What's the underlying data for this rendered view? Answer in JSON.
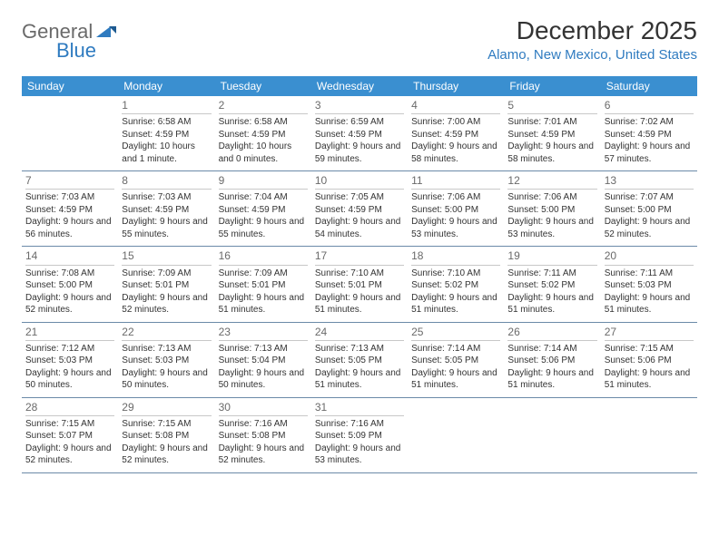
{
  "logo": {
    "general": "General",
    "blue": "Blue"
  },
  "header": {
    "title": "December 2025",
    "location": "Alamo, New Mexico, United States"
  },
  "colors": {
    "header_bg": "#3a8fd0",
    "accent": "#2f7bc0",
    "text": "#333333",
    "muted": "#6a6a6a",
    "divider": "#6b8aa8",
    "cell_divider": "#c8c8c8",
    "bg": "#ffffff"
  },
  "weekdays": [
    "Sunday",
    "Monday",
    "Tuesday",
    "Wednesday",
    "Thursday",
    "Friday",
    "Saturday"
  ],
  "weeks": [
    [
      {
        "n": "",
        "sr": "",
        "ss": "",
        "dl": ""
      },
      {
        "n": "1",
        "sr": "Sunrise: 6:58 AM",
        "ss": "Sunset: 4:59 PM",
        "dl": "Daylight: 10 hours and 1 minute."
      },
      {
        "n": "2",
        "sr": "Sunrise: 6:58 AM",
        "ss": "Sunset: 4:59 PM",
        "dl": "Daylight: 10 hours and 0 minutes."
      },
      {
        "n": "3",
        "sr": "Sunrise: 6:59 AM",
        "ss": "Sunset: 4:59 PM",
        "dl": "Daylight: 9 hours and 59 minutes."
      },
      {
        "n": "4",
        "sr": "Sunrise: 7:00 AM",
        "ss": "Sunset: 4:59 PM",
        "dl": "Daylight: 9 hours and 58 minutes."
      },
      {
        "n": "5",
        "sr": "Sunrise: 7:01 AM",
        "ss": "Sunset: 4:59 PM",
        "dl": "Daylight: 9 hours and 58 minutes."
      },
      {
        "n": "6",
        "sr": "Sunrise: 7:02 AM",
        "ss": "Sunset: 4:59 PM",
        "dl": "Daylight: 9 hours and 57 minutes."
      }
    ],
    [
      {
        "n": "7",
        "sr": "Sunrise: 7:03 AM",
        "ss": "Sunset: 4:59 PM",
        "dl": "Daylight: 9 hours and 56 minutes."
      },
      {
        "n": "8",
        "sr": "Sunrise: 7:03 AM",
        "ss": "Sunset: 4:59 PM",
        "dl": "Daylight: 9 hours and 55 minutes."
      },
      {
        "n": "9",
        "sr": "Sunrise: 7:04 AM",
        "ss": "Sunset: 4:59 PM",
        "dl": "Daylight: 9 hours and 55 minutes."
      },
      {
        "n": "10",
        "sr": "Sunrise: 7:05 AM",
        "ss": "Sunset: 4:59 PM",
        "dl": "Daylight: 9 hours and 54 minutes."
      },
      {
        "n": "11",
        "sr": "Sunrise: 7:06 AM",
        "ss": "Sunset: 5:00 PM",
        "dl": "Daylight: 9 hours and 53 minutes."
      },
      {
        "n": "12",
        "sr": "Sunrise: 7:06 AM",
        "ss": "Sunset: 5:00 PM",
        "dl": "Daylight: 9 hours and 53 minutes."
      },
      {
        "n": "13",
        "sr": "Sunrise: 7:07 AM",
        "ss": "Sunset: 5:00 PM",
        "dl": "Daylight: 9 hours and 52 minutes."
      }
    ],
    [
      {
        "n": "14",
        "sr": "Sunrise: 7:08 AM",
        "ss": "Sunset: 5:00 PM",
        "dl": "Daylight: 9 hours and 52 minutes."
      },
      {
        "n": "15",
        "sr": "Sunrise: 7:09 AM",
        "ss": "Sunset: 5:01 PM",
        "dl": "Daylight: 9 hours and 52 minutes."
      },
      {
        "n": "16",
        "sr": "Sunrise: 7:09 AM",
        "ss": "Sunset: 5:01 PM",
        "dl": "Daylight: 9 hours and 51 minutes."
      },
      {
        "n": "17",
        "sr": "Sunrise: 7:10 AM",
        "ss": "Sunset: 5:01 PM",
        "dl": "Daylight: 9 hours and 51 minutes."
      },
      {
        "n": "18",
        "sr": "Sunrise: 7:10 AM",
        "ss": "Sunset: 5:02 PM",
        "dl": "Daylight: 9 hours and 51 minutes."
      },
      {
        "n": "19",
        "sr": "Sunrise: 7:11 AM",
        "ss": "Sunset: 5:02 PM",
        "dl": "Daylight: 9 hours and 51 minutes."
      },
      {
        "n": "20",
        "sr": "Sunrise: 7:11 AM",
        "ss": "Sunset: 5:03 PM",
        "dl": "Daylight: 9 hours and 51 minutes."
      }
    ],
    [
      {
        "n": "21",
        "sr": "Sunrise: 7:12 AM",
        "ss": "Sunset: 5:03 PM",
        "dl": "Daylight: 9 hours and 50 minutes."
      },
      {
        "n": "22",
        "sr": "Sunrise: 7:13 AM",
        "ss": "Sunset: 5:03 PM",
        "dl": "Daylight: 9 hours and 50 minutes."
      },
      {
        "n": "23",
        "sr": "Sunrise: 7:13 AM",
        "ss": "Sunset: 5:04 PM",
        "dl": "Daylight: 9 hours and 50 minutes."
      },
      {
        "n": "24",
        "sr": "Sunrise: 7:13 AM",
        "ss": "Sunset: 5:05 PM",
        "dl": "Daylight: 9 hours and 51 minutes."
      },
      {
        "n": "25",
        "sr": "Sunrise: 7:14 AM",
        "ss": "Sunset: 5:05 PM",
        "dl": "Daylight: 9 hours and 51 minutes."
      },
      {
        "n": "26",
        "sr": "Sunrise: 7:14 AM",
        "ss": "Sunset: 5:06 PM",
        "dl": "Daylight: 9 hours and 51 minutes."
      },
      {
        "n": "27",
        "sr": "Sunrise: 7:15 AM",
        "ss": "Sunset: 5:06 PM",
        "dl": "Daylight: 9 hours and 51 minutes."
      }
    ],
    [
      {
        "n": "28",
        "sr": "Sunrise: 7:15 AM",
        "ss": "Sunset: 5:07 PM",
        "dl": "Daylight: 9 hours and 52 minutes."
      },
      {
        "n": "29",
        "sr": "Sunrise: 7:15 AM",
        "ss": "Sunset: 5:08 PM",
        "dl": "Daylight: 9 hours and 52 minutes."
      },
      {
        "n": "30",
        "sr": "Sunrise: 7:16 AM",
        "ss": "Sunset: 5:08 PM",
        "dl": "Daylight: 9 hours and 52 minutes."
      },
      {
        "n": "31",
        "sr": "Sunrise: 7:16 AM",
        "ss": "Sunset: 5:09 PM",
        "dl": "Daylight: 9 hours and 53 minutes."
      },
      {
        "n": "",
        "sr": "",
        "ss": "",
        "dl": ""
      },
      {
        "n": "",
        "sr": "",
        "ss": "",
        "dl": ""
      },
      {
        "n": "",
        "sr": "",
        "ss": "",
        "dl": ""
      }
    ]
  ]
}
